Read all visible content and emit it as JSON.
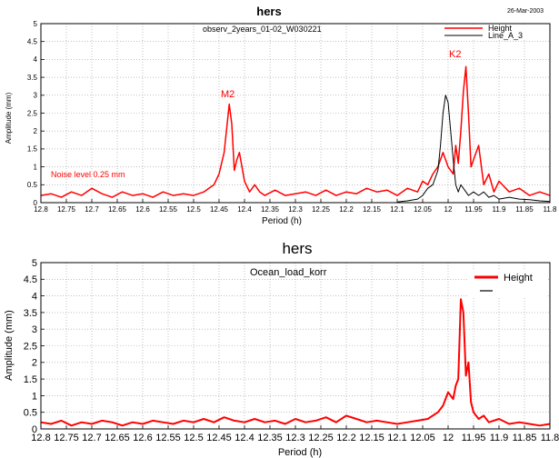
{
  "chart_data": [
    {
      "type": "line",
      "title": "hers",
      "date": "26-Mar-2003",
      "subtitle": "observ_2years_01-02_W030221",
      "xlabel": "Period (h)",
      "ylabel": "Amplitude (mm)",
      "xlim": [
        12.8,
        11.8
      ],
      "ylim": [
        0,
        5
      ],
      "grid": true,
      "x_ticks": [
        "12.8",
        "12.75",
        "12.7",
        "12.65",
        "12.6",
        "12.55",
        "12.5",
        "12.45",
        "12.4",
        "12.35",
        "12.3",
        "12.25",
        "12.2",
        "12.15",
        "12.1",
        "12.05",
        "12",
        "11.95",
        "11.9",
        "11.85",
        "11.8"
      ],
      "y_ticks": [
        "0",
        "0.5",
        "1",
        "1.5",
        "2",
        "2.5",
        "3",
        "3.5",
        "4",
        "4.5",
        "5"
      ],
      "legend_position": "top-right",
      "annotations": [
        {
          "text": "M2",
          "x": 12.42,
          "y": 2.9,
          "color": "#ff0000"
        },
        {
          "text": "K2",
          "x": 11.97,
          "y": 4.0,
          "color": "#ff0000"
        },
        {
          "text": "Noise level 0.25 mm",
          "x": 12.8,
          "y": 0.55,
          "color": "#ff0000"
        }
      ],
      "series": [
        {
          "name": "Height",
          "color": "#ff0000",
          "x": [
            12.8,
            12.78,
            12.76,
            12.74,
            12.72,
            12.7,
            12.68,
            12.66,
            12.64,
            12.62,
            12.6,
            12.58,
            12.56,
            12.54,
            12.52,
            12.5,
            12.48,
            12.46,
            12.45,
            12.44,
            12.43,
            12.425,
            12.42,
            12.415,
            12.41,
            12.4,
            12.39,
            12.38,
            12.37,
            12.36,
            12.34,
            12.32,
            12.3,
            12.28,
            12.26,
            12.24,
            12.22,
            12.2,
            12.18,
            12.16,
            12.14,
            12.12,
            12.1,
            12.08,
            12.06,
            12.05,
            12.04,
            12.03,
            12.02,
            12.01,
            12.0,
            11.99,
            11.985,
            11.98,
            11.975,
            11.97,
            11.965,
            11.96,
            11.955,
            11.95,
            11.94,
            11.93,
            11.92,
            11.91,
            11.9,
            11.88,
            11.86,
            11.84,
            11.82,
            11.8
          ],
          "values": [
            0.2,
            0.25,
            0.15,
            0.3,
            0.2,
            0.4,
            0.25,
            0.15,
            0.3,
            0.2,
            0.25,
            0.15,
            0.3,
            0.2,
            0.25,
            0.2,
            0.3,
            0.5,
            0.8,
            1.4,
            2.75,
            2.2,
            0.9,
            1.2,
            1.4,
            0.6,
            0.3,
            0.5,
            0.3,
            0.2,
            0.35,
            0.2,
            0.25,
            0.3,
            0.2,
            0.35,
            0.2,
            0.3,
            0.25,
            0.4,
            0.3,
            0.35,
            0.2,
            0.4,
            0.3,
            0.6,
            0.5,
            0.8,
            1.0,
            1.4,
            1.0,
            0.8,
            1.6,
            1.1,
            2.0,
            3.1,
            3.8,
            2.5,
            1.0,
            1.2,
            1.6,
            0.5,
            0.8,
            0.3,
            0.6,
            0.3,
            0.4,
            0.2,
            0.3,
            0.2
          ]
        },
        {
          "name": "Line_A_3",
          "color": "#000000",
          "x": [
            12.1,
            12.08,
            12.06,
            12.05,
            12.04,
            12.03,
            12.02,
            12.015,
            12.01,
            12.005,
            12.0,
            11.995,
            11.99,
            11.985,
            11.98,
            11.975,
            11.97,
            11.96,
            11.95,
            11.94,
            11.93,
            11.92,
            11.91,
            11.9,
            11.88,
            11.86,
            11.84,
            11.82,
            11.8
          ],
          "values": [
            0.02,
            0.05,
            0.1,
            0.2,
            0.4,
            0.5,
            0.9,
            1.6,
            2.5,
            3.0,
            2.8,
            2.0,
            1.2,
            0.5,
            0.3,
            0.5,
            0.4,
            0.2,
            0.3,
            0.2,
            0.3,
            0.15,
            0.2,
            0.1,
            0.15,
            0.1,
            0.08,
            0.05,
            0.03
          ]
        }
      ]
    },
    {
      "type": "line",
      "title": "hers",
      "subtitle": "Ocean_load_korr",
      "xlabel": "Period (h)",
      "ylabel": "Amplitude (mm)",
      "xlim": [
        12.8,
        11.8
      ],
      "ylim": [
        0,
        5
      ],
      "grid": true,
      "x_ticks": [
        "12.8",
        "12.75",
        "12.7",
        "12.65",
        "12.6",
        "12.55",
        "12.5",
        "12.45",
        "12.4",
        "12.35",
        "12.3",
        "12.25",
        "12.2",
        "12.15",
        "12.1",
        "12.05",
        "12",
        "11.95",
        "11.9",
        "11.85",
        "11.8"
      ],
      "y_ticks": [
        "0",
        "0.5",
        "1",
        "1.5",
        "2",
        "2.5",
        "3",
        "3.5",
        "4",
        "4.5",
        "5"
      ],
      "legend_position": "top-right",
      "series": [
        {
          "name": "Height",
          "color": "#ff0000",
          "x": [
            12.8,
            12.78,
            12.76,
            12.74,
            12.72,
            12.7,
            12.68,
            12.66,
            12.64,
            12.62,
            12.6,
            12.58,
            12.56,
            12.54,
            12.52,
            12.5,
            12.48,
            12.46,
            12.44,
            12.42,
            12.4,
            12.38,
            12.36,
            12.34,
            12.32,
            12.3,
            12.28,
            12.26,
            12.24,
            12.22,
            12.2,
            12.18,
            12.16,
            12.14,
            12.12,
            12.1,
            12.08,
            12.06,
            12.04,
            12.02,
            12.01,
            12.0,
            11.99,
            11.985,
            11.98,
            11.975,
            11.97,
            11.965,
            11.96,
            11.955,
            11.95,
            11.94,
            11.93,
            11.92,
            11.9,
            11.88,
            11.86,
            11.84,
            11.82,
            11.8
          ],
          "values": [
            0.2,
            0.15,
            0.25,
            0.1,
            0.2,
            0.15,
            0.25,
            0.2,
            0.1,
            0.2,
            0.15,
            0.25,
            0.2,
            0.15,
            0.25,
            0.2,
            0.3,
            0.2,
            0.35,
            0.25,
            0.2,
            0.3,
            0.2,
            0.25,
            0.15,
            0.3,
            0.2,
            0.25,
            0.35,
            0.2,
            0.4,
            0.3,
            0.2,
            0.25,
            0.2,
            0.15,
            0.2,
            0.25,
            0.3,
            0.5,
            0.7,
            1.1,
            0.9,
            1.3,
            1.5,
            3.9,
            3.5,
            1.6,
            2.0,
            0.8,
            0.5,
            0.3,
            0.4,
            0.2,
            0.3,
            0.15,
            0.2,
            0.15,
            0.1,
            0.15
          ]
        }
      ]
    }
  ]
}
